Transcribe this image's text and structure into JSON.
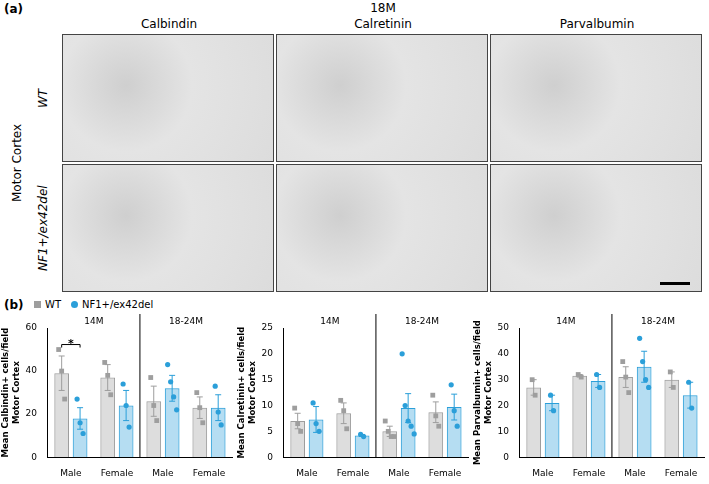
{
  "panels": {
    "a": {
      "label": "(a)",
      "title": "18M",
      "columns": [
        "Calbindin",
        "Calretinin",
        "Parvalbumin"
      ],
      "region": "Motor Cortex",
      "rows": [
        "WT",
        "NF1+/ex42del"
      ]
    },
    "b": {
      "label": "(b)"
    }
  },
  "chart_data": [
    {
      "type": "bar",
      "y_label": [
        "Mean Calbindin+ cells/field",
        "Motor Cortex"
      ],
      "categories": [
        "Male",
        "Female",
        "Male",
        "Female"
      ],
      "groups": [
        {
          "label": "14M",
          "span": 2
        },
        {
          "label": "18-24M",
          "span": 2
        }
      ],
      "ylim": [
        0,
        60
      ],
      "yticks": [
        0,
        20,
        40,
        60
      ],
      "grid": false,
      "annotations": [
        {
          "text": "*",
          "category_index": 0
        }
      ],
      "series": [
        {
          "name": "WT",
          "color": "#9e9e9e",
          "marker": "square",
          "values": [
            39,
            37,
            26,
            23
          ],
          "errors": [
            8,
            6,
            7,
            5
          ],
          "points": [
            [
              50,
              40,
              27
            ],
            [
              44,
              38,
              29
            ],
            [
              37,
              24,
              17
            ],
            [
              30,
              23,
              16
            ]
          ]
        },
        {
          "name": "NF1+/ex42del",
          "color": "#2b9fd9",
          "marker": "circle",
          "values": [
            18,
            24,
            32,
            23
          ],
          "errors": [
            5,
            7,
            6,
            6
          ],
          "points": [
            [
              27,
              16,
              11
            ],
            [
              34,
              24,
              14
            ],
            [
              43,
              35,
              28,
              22
            ],
            [
              33,
              21,
              15
            ]
          ]
        }
      ]
    },
    {
      "type": "bar",
      "y_label": [
        "Mean Calretinin+ cells/field",
        "Motor Cortex"
      ],
      "categories": [
        "Male",
        "Female",
        "Male",
        "Female"
      ],
      "groups": [
        {
          "label": "14M",
          "span": 2
        },
        {
          "label": "18-24M",
          "span": 2
        }
      ],
      "ylim": [
        0,
        25
      ],
      "yticks": [
        0,
        5,
        10,
        15,
        20,
        25
      ],
      "grid": false,
      "annotations": [],
      "series": [
        {
          "name": "WT",
          "color": "#9e9e9e",
          "marker": "square",
          "values": [
            7,
            8.5,
            5,
            8.7
          ],
          "errors": [
            1.5,
            2,
            1,
            2
          ],
          "points": [
            [
              9.5,
              6.5,
              5
            ],
            [
              11,
              9,
              5.5
            ],
            [
              7,
              5,
              4,
              4
            ],
            [
              12,
              8,
              6
            ]
          ]
        },
        {
          "name": "NF1+/ex42del",
          "color": "#2b9fd9",
          "marker": "circle",
          "values": [
            7.3,
            4.2,
            9.5,
            9.7
          ],
          "errors": [
            2.5,
            0.2,
            2.8,
            2.5
          ],
          "points": [
            [
              10.5,
              6.5,
              5
            ],
            [
              4.4,
              4
            ],
            [
              20,
              10,
              7,
              6,
              4.5
            ],
            [
              14,
              9,
              6
            ]
          ]
        }
      ]
    },
    {
      "type": "bar",
      "y_label": [
        "Mean Parvalbumin+ cells/field",
        "Motor Cortex"
      ],
      "categories": [
        "Male",
        "Female",
        "Male",
        "Female"
      ],
      "groups": [
        {
          "label": "14M",
          "span": 2
        },
        {
          "label": "18-24M",
          "span": 2
        }
      ],
      "ylim": [
        0,
        50
      ],
      "yticks": [
        0,
        10,
        20,
        30,
        40,
        50
      ],
      "grid": false,
      "annotations": [],
      "series": [
        {
          "name": "WT",
          "color": "#9e9e9e",
          "marker": "square",
          "values": [
            27,
            31.5,
            31,
            30
          ],
          "errors": [
            3,
            0.5,
            4,
            3
          ],
          "points": [
            [
              30,
              24
            ],
            [
              32,
              31
            ],
            [
              37,
              31,
              25
            ],
            [
              33,
              27
            ]
          ]
        },
        {
          "name": "NF1+/ex42del",
          "color": "#2b9fd9",
          "marker": "circle",
          "values": [
            21,
            29.5,
            35,
            24
          ],
          "errors": [
            3,
            2.5,
            6,
            5
          ],
          "points": [
            [
              24,
              18
            ],
            [
              32,
              27
            ],
            [
              46,
              37,
              30,
              27
            ],
            [
              29,
              19
            ]
          ]
        }
      ]
    }
  ]
}
